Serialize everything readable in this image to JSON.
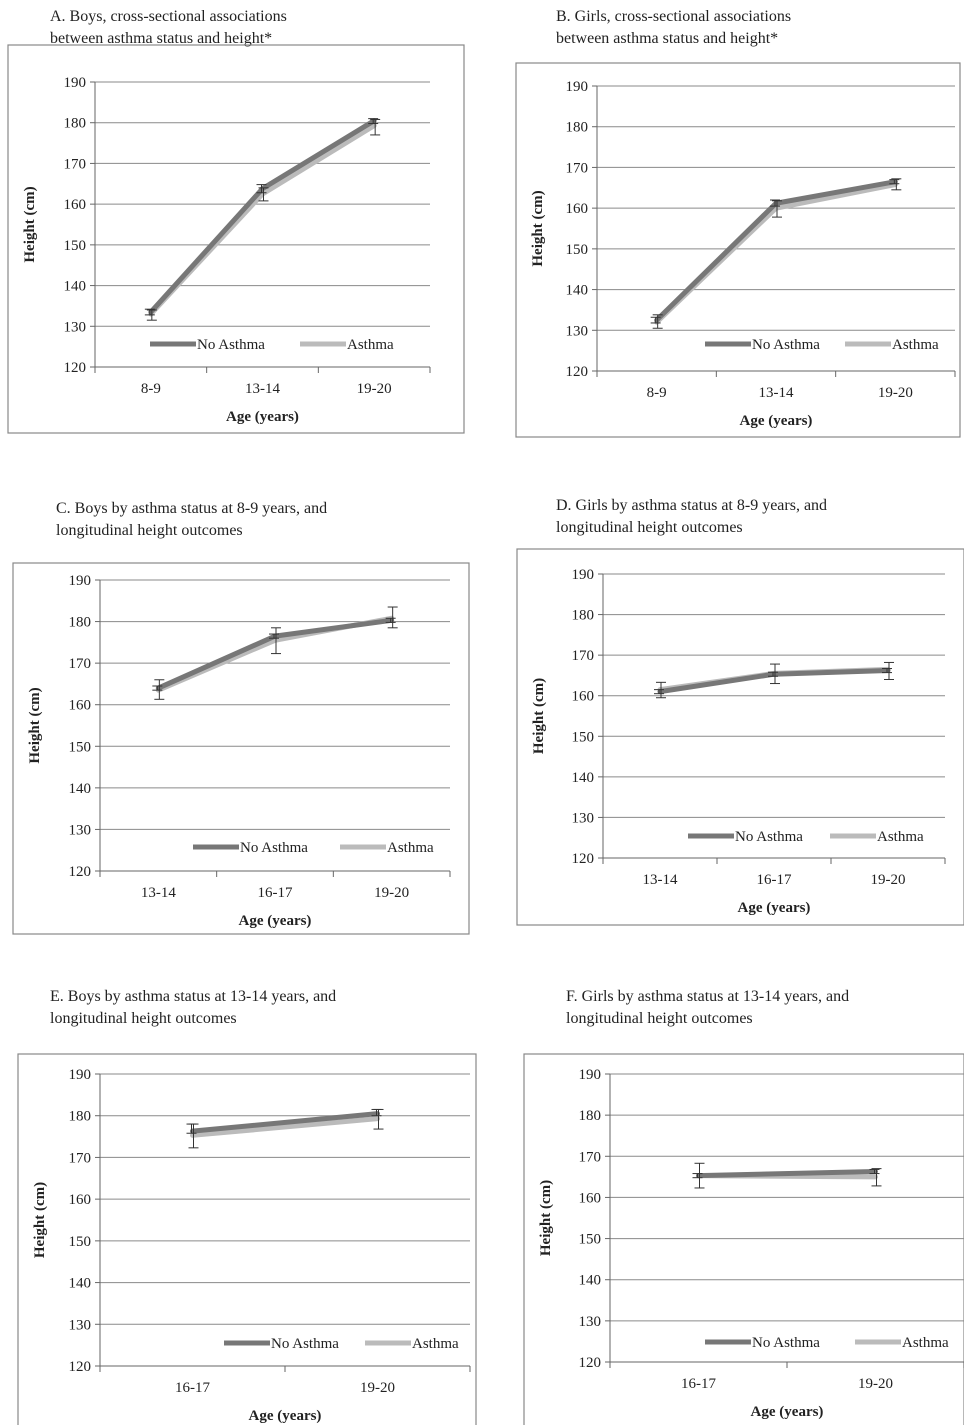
{
  "chart_data": [
    {
      "id": "A",
      "type": "line",
      "title": "A. Boys, cross-sectional associations",
      "subtitle": "between asthma status and height*",
      "xlabel": "Age (years)",
      "ylabel": "Height (cm)",
      "categories": [
        "8-9",
        "13-14",
        "19-20"
      ],
      "ylim": [
        120,
        190
      ],
      "yticks": [
        120,
        130,
        140,
        150,
        160,
        170,
        180,
        190
      ],
      "legend_position": "bottom-right",
      "grid": true,
      "series": [
        {
          "name": "No Asthma",
          "color": "#777777",
          "values": [
            133.5,
            163.8,
            180.5
          ],
          "err": [
            [
              132.8,
              134.2
            ],
            [
              162.8,
              164.8
            ],
            [
              179.8,
              181.0
            ]
          ]
        },
        {
          "name": "Asthma",
          "color": "#bbbbbb",
          "values": [
            133.0,
            162.5,
            179.3
          ],
          "err": [
            [
              131.5,
              134.0
            ],
            [
              160.8,
              164.0
            ],
            [
              177.0,
              180.8
            ]
          ]
        }
      ]
    },
    {
      "id": "B",
      "type": "line",
      "title": "B. Girls, cross-sectional associations",
      "subtitle": "between asthma status and height*",
      "xlabel": "Age (years)",
      "ylabel": "Height (cm)",
      "categories": [
        "8-9",
        "13-14",
        "19-20"
      ],
      "ylim": [
        120,
        190
      ],
      "yticks": [
        120,
        130,
        140,
        150,
        160,
        170,
        180,
        190
      ],
      "legend_position": "bottom-right",
      "grid": true,
      "series": [
        {
          "name": "No Asthma",
          "color": "#777777",
          "values": [
            132.5,
            161.2,
            166.5
          ],
          "err": [
            [
              131.8,
              133.2
            ],
            [
              160.5,
              162.0
            ],
            [
              166.0,
              167.0
            ]
          ]
        },
        {
          "name": "Asthma",
          "color": "#bbbbbb",
          "values": [
            132.0,
            160.0,
            165.8
          ],
          "err": [
            [
              130.5,
              133.8
            ],
            [
              157.8,
              161.8
            ],
            [
              164.5,
              167.2
            ]
          ]
        }
      ]
    },
    {
      "id": "C",
      "type": "line",
      "title": "C. Boys by asthma status at 8-9 years, and",
      "subtitle": "longitudinal height outcomes",
      "xlabel": "Age (years)",
      "ylabel": "Height (cm)",
      "categories": [
        "13-14",
        "16-17",
        "19-20"
      ],
      "ylim": [
        120,
        190
      ],
      "yticks": [
        120,
        130,
        140,
        150,
        160,
        170,
        180,
        190
      ],
      "legend_position": "bottom-right",
      "grid": true,
      "series": [
        {
          "name": "No Asthma",
          "color": "#777777",
          "values": [
            164.0,
            176.5,
            180.3
          ],
          "err": [
            [
              163.5,
              164.5
            ],
            [
              176.0,
              177.0
            ],
            [
              179.8,
              180.8
            ]
          ]
        },
        {
          "name": "Asthma",
          "color": "#bbbbbb",
          "values": [
            163.5,
            175.5,
            180.8
          ],
          "err": [
            [
              161.3,
              166.0
            ],
            [
              172.3,
              178.5
            ],
            [
              178.5,
              183.5
            ]
          ]
        }
      ]
    },
    {
      "id": "D",
      "type": "line",
      "title": "D. Girls by asthma status at 8-9 years, and",
      "subtitle": "longitudinal height outcomes",
      "xlabel": "Age (years)",
      "ylabel": "Height (cm)",
      "categories": [
        "13-14",
        "16-17",
        "19-20"
      ],
      "ylim": [
        120,
        190
      ],
      "yticks": [
        120,
        130,
        140,
        150,
        160,
        170,
        180,
        190
      ],
      "legend_position": "bottom-right",
      "grid": true,
      "series": [
        {
          "name": "No Asthma",
          "color": "#777777",
          "values": [
            161.0,
            165.3,
            166.2
          ],
          "err": [
            [
              160.5,
              161.5
            ],
            [
              164.8,
              165.8
            ],
            [
              165.7,
              166.7
            ]
          ]
        },
        {
          "name": "Asthma",
          "color": "#bbbbbb",
          "values": [
            161.5,
            165.5,
            166.5
          ],
          "err": [
            [
              159.5,
              163.3
            ],
            [
              163.0,
              167.8
            ],
            [
              164.0,
              168.2
            ]
          ]
        }
      ]
    },
    {
      "id": "E",
      "type": "line",
      "title": "E. Boys by asthma status at 13-14 years, and",
      "subtitle": "longitudinal height outcomes",
      "xlabel": "Age (years)",
      "ylabel": "Height (cm)",
      "categories": [
        "16-17",
        "19-20"
      ],
      "ylim": [
        120,
        190
      ],
      "yticks": [
        120,
        130,
        140,
        150,
        160,
        170,
        180,
        190
      ],
      "legend_position": "bottom-right",
      "grid": true,
      "series": [
        {
          "name": "No Asthma",
          "color": "#777777",
          "values": [
            176.3,
            180.5
          ],
          "err": [
            [
              175.8,
              178.0
            ],
            [
              180.0,
              181.5
            ]
          ]
        },
        {
          "name": "Asthma",
          "color": "#bbbbbb",
          "values": [
            175.3,
            179.3
          ],
          "err": [
            [
              172.3,
              178.0
            ],
            [
              176.8,
              181.5
            ]
          ]
        }
      ]
    },
    {
      "id": "F",
      "type": "line",
      "title": "F. Girls by asthma status at 13-14 years, and",
      "subtitle": "longitudinal height outcomes",
      "xlabel": "Age (years)",
      "ylabel": "Height (cm)",
      "categories": [
        "16-17",
        "19-20"
      ],
      "ylim": [
        120,
        190
      ],
      "yticks": [
        120,
        130,
        140,
        150,
        160,
        170,
        180,
        190
      ],
      "legend_position": "bottom-right",
      "grid": true,
      "series": [
        {
          "name": "No Asthma",
          "color": "#777777",
          "values": [
            165.3,
            166.3
          ],
          "err": [
            [
              164.8,
              165.8
            ],
            [
              165.8,
              166.8
            ]
          ]
        },
        {
          "name": "Asthma",
          "color": "#bbbbbb",
          "values": [
            165.3,
            165.0
          ],
          "err": [
            [
              162.3,
              168.3
            ],
            [
              162.8,
              167.0
            ]
          ]
        }
      ]
    }
  ]
}
